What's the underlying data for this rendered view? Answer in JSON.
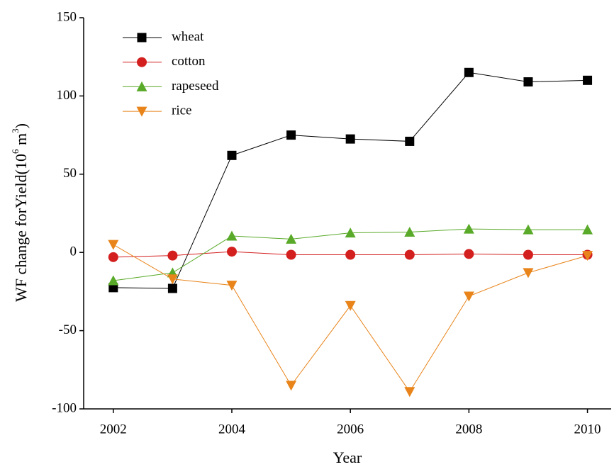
{
  "chart_data": {
    "type": "line",
    "x_label": "Year",
    "y_label": [
      "WF change forYield(10",
      "6",
      " m",
      "3",
      ")"
    ],
    "x": [
      2002,
      2003,
      2004,
      2005,
      2006,
      2007,
      2008,
      2009,
      2010
    ],
    "series": [
      {
        "name": "wheat",
        "color": "#000000",
        "marker": "square",
        "values": [
          -22.5,
          -23,
          62,
          75,
          72.5,
          71,
          115,
          109,
          110
        ]
      },
      {
        "name": "cotton",
        "color": "#d41f1f",
        "marker": "circle",
        "values": [
          -3,
          -2,
          0.5,
          -1.5,
          -1.5,
          -1.5,
          -1,
          -1.5,
          -1.5
        ]
      },
      {
        "name": "rapeseed",
        "color": "#5aaa2a",
        "marker": "triangle-up",
        "values": [
          -18,
          -13,
          10.5,
          8.5,
          12.5,
          13,
          15,
          14.5,
          14.5
        ]
      },
      {
        "name": "rice",
        "color": "#e8841a",
        "marker": "triangle-down",
        "values": [
          5,
          -17,
          -21,
          -85,
          -34,
          -89,
          -28,
          -13,
          -2
        ]
      }
    ],
    "xlim": [
      2001.5,
      2010.4
    ],
    "xticks": [
      2002,
      2004,
      2006,
      2008,
      2010
    ],
    "ylim": [
      -100,
      150
    ],
    "yticks": [
      -100,
      -50,
      0,
      50,
      100,
      150
    ],
    "grid": false,
    "legend": "top-left"
  }
}
